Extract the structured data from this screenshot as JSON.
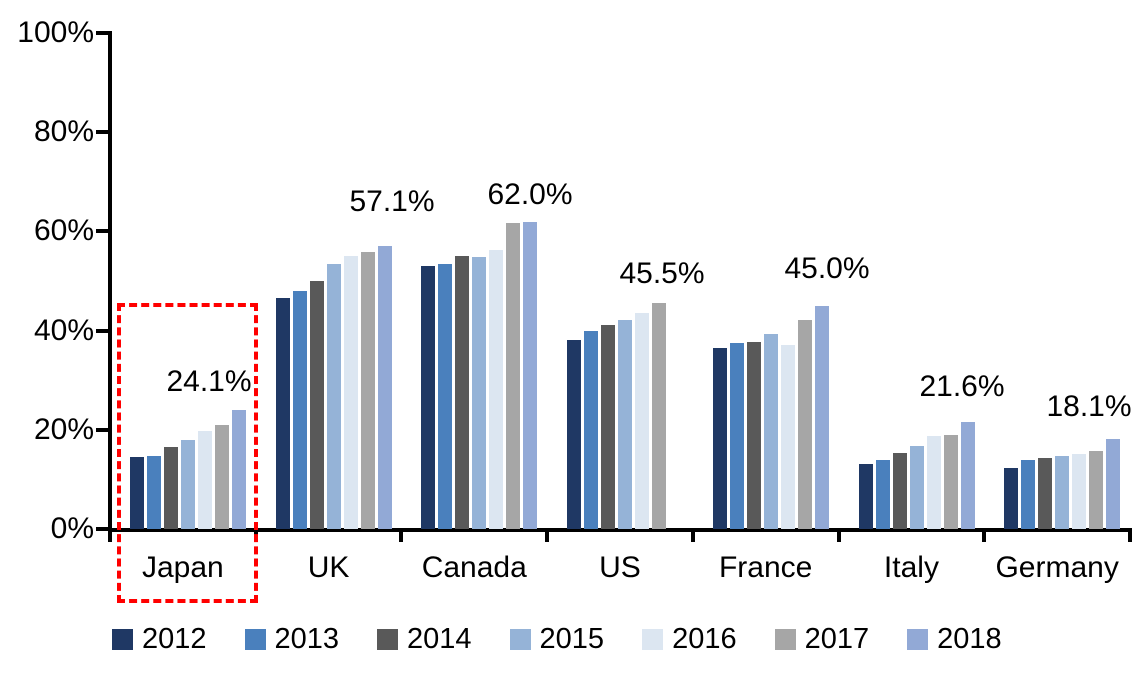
{
  "chart_data": {
    "type": "bar",
    "title": "",
    "xlabel": "",
    "ylabel": "",
    "ylim": [
      0,
      100
    ],
    "y_ticks": [
      "100%",
      "80%",
      "60%",
      "40%",
      "20%",
      "0%"
    ],
    "grid": false,
    "legend_position": "bottom",
    "categories": [
      "Japan",
      "UK",
      "Canada",
      "US",
      "France",
      "Italy",
      "Germany"
    ],
    "series": [
      {
        "name": "2012",
        "color": "#1F3864",
        "values": [
          14.6,
          46.5,
          53.1,
          38.2,
          36.5,
          13.1,
          12.4
        ]
      },
      {
        "name": "2013",
        "color": "#4A80BD",
        "values": [
          14.8,
          47.9,
          53.5,
          40.0,
          37.6,
          13.9,
          13.9
        ]
      },
      {
        "name": "2014",
        "color": "#595959",
        "values": [
          16.5,
          50.1,
          55.0,
          41.1,
          37.7,
          15.4,
          14.3
        ]
      },
      {
        "name": "2015",
        "color": "#95B3D7",
        "values": [
          17.9,
          53.4,
          54.8,
          42.2,
          39.3,
          16.7,
          14.7
        ]
      },
      {
        "name": "2016",
        "color": "#DCE6F1",
        "values": [
          19.8,
          55.0,
          56.3,
          43.5,
          37.2,
          18.7,
          15.2
        ]
      },
      {
        "name": "2017",
        "color": "#A6A6A6",
        "values": [
          20.9,
          55.9,
          61.8,
          45.5,
          42.2,
          18.9,
          15.8
        ]
      },
      {
        "name": "2018",
        "color": "#92A9D6",
        "values": [
          24.1,
          57.1,
          62.0,
          null,
          45.0,
          21.6,
          18.1
        ]
      }
    ],
    "data_labels": [
      {
        "category": "Japan",
        "text": "24.1%"
      },
      {
        "category": "UK",
        "text": "57.1%"
      },
      {
        "category": "Canada",
        "text": "62.0%"
      },
      {
        "category": "US",
        "text": "45.5%"
      },
      {
        "category": "France",
        "text": "45.0%"
      },
      {
        "category": "Italy",
        "text": "21.6%"
      },
      {
        "category": "Germany",
        "text": "18.1%"
      }
    ],
    "highlight": {
      "category": "Japan",
      "style": "dashed-box",
      "color": "#FF0000"
    }
  }
}
